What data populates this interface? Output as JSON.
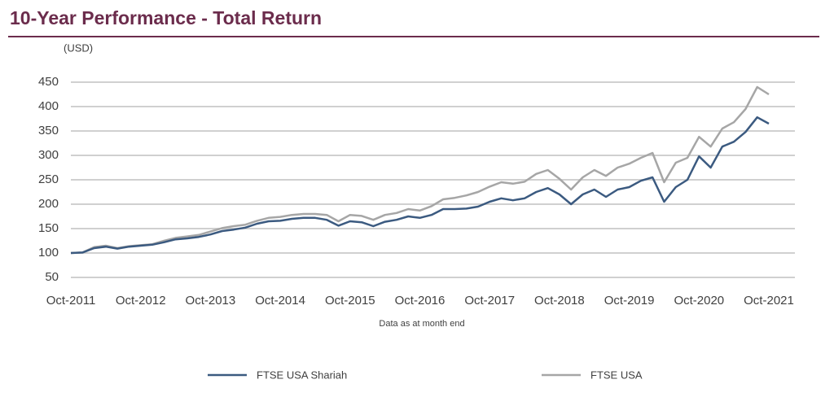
{
  "chart_data": {
    "type": "line",
    "title": "10-Year Performance - Total Return",
    "y_label": "(USD)",
    "x_label": "Data as at month end",
    "categories": [
      "Oct-2011",
      null,
      null,
      null,
      null,
      null,
      "Oct-2012",
      null,
      null,
      null,
      null,
      null,
      "Oct-2013",
      null,
      null,
      null,
      null,
      null,
      "Oct-2014",
      null,
      null,
      null,
      null,
      null,
      "Oct-2015",
      null,
      null,
      null,
      null,
      null,
      "Oct-2016",
      null,
      null,
      null,
      null,
      null,
      "Oct-2017",
      null,
      null,
      null,
      null,
      null,
      "Oct-2018",
      null,
      null,
      null,
      null,
      null,
      "Oct-2019",
      null,
      null,
      null,
      null,
      null,
      "Oct-2020",
      null,
      null,
      null,
      null,
      null,
      "Oct-2021"
    ],
    "series": [
      {
        "name": "FTSE USA Shariah",
        "color": "#3b5a80",
        "values": [
          100,
          101,
          110,
          113,
          109,
          113,
          115,
          117,
          122,
          128,
          130,
          133,
          138,
          145,
          148,
          152,
          160,
          165,
          166,
          170,
          172,
          172,
          168,
          156,
          165,
          163,
          155,
          164,
          168,
          175,
          172,
          178,
          190,
          190,
          191,
          195,
          205,
          212,
          208,
          212,
          225,
          233,
          220,
          200,
          220,
          230,
          215,
          230,
          235,
          248,
          255,
          205,
          235,
          250,
          298,
          275,
          318,
          328,
          348,
          378,
          365
        ]
      },
      {
        "name": "FTSE USA",
        "color": "#a6a6a6",
        "values": [
          100,
          101,
          112,
          115,
          110,
          114,
          116,
          118,
          125,
          131,
          134,
          137,
          144,
          151,
          155,
          158,
          166,
          172,
          174,
          178,
          180,
          180,
          178,
          165,
          178,
          176,
          168,
          178,
          182,
          190,
          187,
          196,
          210,
          213,
          218,
          225,
          236,
          245,
          242,
          246,
          262,
          270,
          252,
          230,
          255,
          270,
          258,
          275,
          283,
          295,
          305,
          245,
          285,
          295,
          338,
          318,
          355,
          368,
          395,
          440,
          425
        ]
      }
    ],
    "ylim": [
      50,
      450
    ],
    "yticks": [
      50,
      100,
      150,
      200,
      250,
      300,
      350,
      400,
      450
    ],
    "grid": true
  }
}
